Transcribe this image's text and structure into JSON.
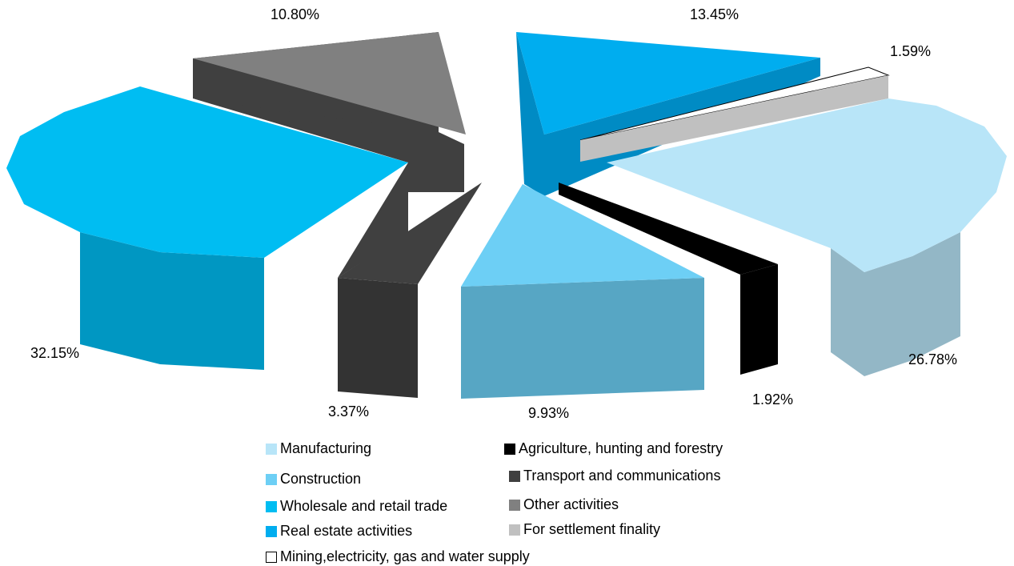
{
  "chart_data": {
    "type": "pie",
    "style": "3d-exploded",
    "slices": [
      {
        "name": "Manufacturing",
        "value": 26.78,
        "label": "26.78%",
        "color": "#b8e5f8"
      },
      {
        "name": "Agriculture, hunting and forestry",
        "value": 1.92,
        "label": "1.92%",
        "color": "#000000"
      },
      {
        "name": "Construction",
        "value": 9.93,
        "label": "9.93%",
        "color": "#6dcff5"
      },
      {
        "name": "Transport and communications",
        "value": 3.37,
        "label": "3.37%",
        "color": "#404040"
      },
      {
        "name": "Wholesale and retail trade",
        "value": 32.15,
        "label": "32.15%",
        "color": "#00bdf2"
      },
      {
        "name": "Other activities",
        "value": 10.8,
        "label": "10.80%",
        "color": "#808080"
      },
      {
        "name": "Real estate activities",
        "value": 13.45,
        "label": "13.45%",
        "color": "#00adef"
      },
      {
        "name": "For settlement finality",
        "value": 1.59,
        "label": "1.59%",
        "color": "#c0c0c0"
      },
      {
        "name": "Mining,electricity, gas and water supply",
        "value": 0,
        "label": "",
        "color": "#ffffff"
      }
    ],
    "legend": {
      "placement": "bottom",
      "entries": [
        {
          "label": "Manufacturing",
          "color": "#b8e5f8"
        },
        {
          "label": "Agriculture, hunting and forestry",
          "color": "#000000"
        },
        {
          "label": "Construction",
          "color": "#6dcff5"
        },
        {
          "label": "Transport and communications",
          "color": "#404040"
        },
        {
          "label": "Wholesale and retail trade",
          "color": "#00bdf2"
        },
        {
          "label": "Other activities",
          "color": "#808080"
        },
        {
          "label": "Real estate activities",
          "color": "#00adef"
        },
        {
          "label": "For settlement finality",
          "color": "#c0c0c0"
        },
        {
          "label": "Mining,electricity, gas and water supply",
          "color": "#ffffff"
        }
      ]
    }
  }
}
